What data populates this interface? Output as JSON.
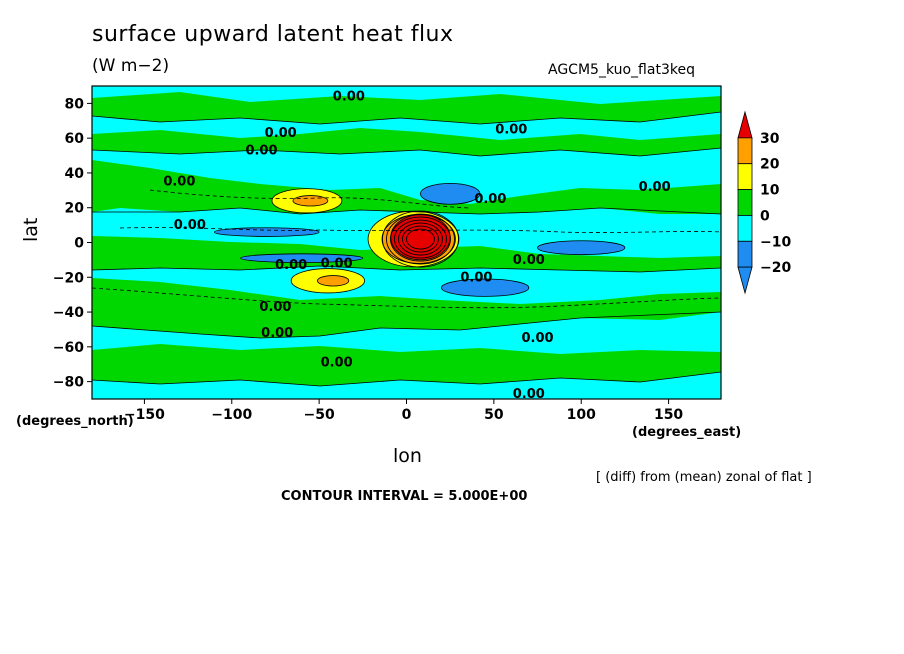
{
  "chart_data": {
    "type": "heatmap",
    "title": "surface upward latent heat flux",
    "units": "(W m−2)",
    "model": "AGCM5_kuo_flat3keq",
    "xlabel": "lon",
    "ylabel": "lat",
    "x_units": "(degrees_east)",
    "y_units": "(degrees_north)",
    "xlim": [
      -180,
      180
    ],
    "ylim": [
      -90,
      90
    ],
    "x_ticks": [
      -150,
      -100,
      -50,
      0,
      50,
      100,
      150
    ],
    "y_ticks": [
      80,
      60,
      40,
      20,
      0,
      -20,
      -40,
      -60,
      -80
    ],
    "x_tick_labels": [
      "−150",
      "−100",
      "−50",
      "0",
      "50",
      "100",
      "150"
    ],
    "y_tick_labels": [
      "80",
      "60",
      "40",
      "20",
      "0",
      "−20",
      "−40",
      "−60",
      "−80"
    ],
    "note": "[ (diff) from (mean) zonal of flat ]",
    "contour_interval": "CONTOUR INTERVAL = 5.000E+00",
    "colorbar": {
      "levels": [
        -20,
        -10,
        0,
        10,
        20,
        30
      ],
      "labels": [
        "−20",
        "−10",
        "0",
        "10",
        "20",
        "30"
      ],
      "colors": [
        "#1e8cf0",
        "#00ffff",
        "#00d700",
        "#ffff00",
        "#ffa000",
        "#e60000"
      ]
    },
    "contour_labels": [
      {
        "text": "0.00",
        "lon": -33,
        "lat": 84
      },
      {
        "text": "0.00",
        "lon": -72,
        "lat": 63
      },
      {
        "text": "0.00",
        "lon": -83,
        "lat": 53
      },
      {
        "text": "0.00",
        "lon": 60,
        "lat": 65
      },
      {
        "text": "0.00",
        "lon": -130,
        "lat": 35
      },
      {
        "text": "0.00",
        "lon": 48,
        "lat": 25
      },
      {
        "text": "0.00",
        "lon": 142,
        "lat": 32
      },
      {
        "text": "0.00",
        "lon": -124,
        "lat": 10
      },
      {
        "text": "0.00",
        "lon": 70,
        "lat": -10
      },
      {
        "text": "0.00",
        "lon": -66,
        "lat": -13
      },
      {
        "text": "0.00",
        "lon": -40,
        "lat": -12
      },
      {
        "text": "0.00",
        "lon": 40,
        "lat": -20
      },
      {
        "text": "0.00",
        "lon": -75,
        "lat": -37
      },
      {
        "text": "0.00",
        "lon": -74,
        "lat": -52
      },
      {
        "text": "0.00",
        "lon": 75,
        "lat": -55
      },
      {
        "text": "0.00",
        "lon": -40,
        "lat": -69
      },
      {
        "text": "0.00",
        "lon": 70,
        "lat": -87
      }
    ],
    "regions": [
      {
        "level": 10,
        "lon": -57,
        "lat": 24,
        "w": 40,
        "h": 14
      },
      {
        "level": 20,
        "lon": -55,
        "lat": 24,
        "w": 20,
        "h": 6
      },
      {
        "level": 10,
        "lon": -45,
        "lat": -22,
        "w": 42,
        "h": 14
      },
      {
        "level": 20,
        "lon": -42,
        "lat": -22,
        "w": 18,
        "h": 6
      },
      {
        "level": 10,
        "lon": 4,
        "lat": 2,
        "w": 52,
        "h": 32
      },
      {
        "level": 20,
        "lon": 7,
        "lat": 2,
        "w": 42,
        "h": 28
      },
      {
        "level": 30,
        "lon": 8,
        "lat": 3,
        "w": 34,
        "h": 26
      },
      {
        "level": -10,
        "lon": 25,
        "lat": 28,
        "w": 34,
        "h": 12
      },
      {
        "level": -10,
        "lon": 100,
        "lat": -3,
        "w": 50,
        "h": 8
      },
      {
        "level": -10,
        "lon": 45,
        "lat": -26,
        "w": 50,
        "h": 10
      },
      {
        "level": -10,
        "lon": -80,
        "lat": 6,
        "w": 60,
        "h": 5
      },
      {
        "level": -10,
        "lon": -60,
        "lat": -9,
        "w": 70,
        "h": 5
      }
    ]
  }
}
